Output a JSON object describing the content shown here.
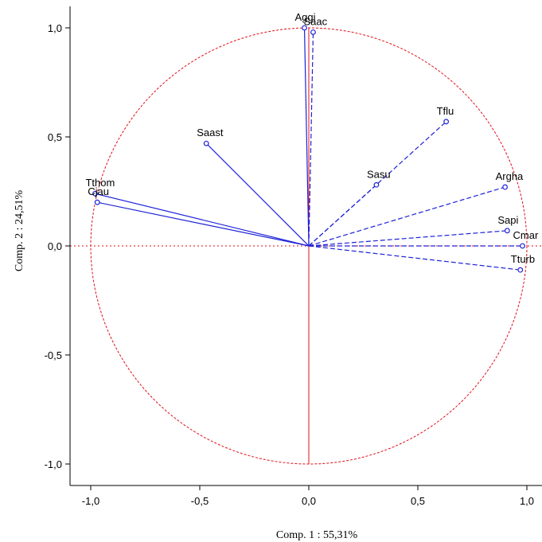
{
  "chart_data": {
    "type": "scatter",
    "subtype": "pca-correlation-circle",
    "title": "",
    "xlabel": "Comp. 1  : 55,31%",
    "ylabel": "Comp. 2  : 24,51%",
    "xlim": [
      -1.1,
      1.1
    ],
    "ylim": [
      -1.1,
      1.1
    ],
    "xticks": [
      "-1,0",
      "-0,5",
      "0,0",
      "0,5",
      "1,0"
    ],
    "yticks": [
      "1,0",
      "0,5",
      "0,0",
      "-0,5",
      "-1,0"
    ],
    "grid": false,
    "circle_color": "#e0101a",
    "vector_color": "#1e22d8",
    "points": [
      {
        "label": "Aggi",
        "x": -0.02,
        "y": 1.0,
        "style": "solid"
      },
      {
        "label": "Saac",
        "x": 0.02,
        "y": 0.98,
        "style": "dashed"
      },
      {
        "label": "Tflu",
        "x": 0.63,
        "y": 0.57,
        "style": "dashed"
      },
      {
        "label": "Saast",
        "x": -0.47,
        "y": 0.47,
        "style": "solid"
      },
      {
        "label": "Sasu",
        "x": 0.31,
        "y": 0.28,
        "style": "dashed"
      },
      {
        "label": "Argha",
        "x": 0.9,
        "y": 0.27,
        "style": "dashed"
      },
      {
        "label": "Tthom",
        "x": -0.98,
        "y": 0.24,
        "style": "solid"
      },
      {
        "label": "Cjau",
        "x": -0.97,
        "y": 0.2,
        "style": "solid"
      },
      {
        "label": "Sapi",
        "x": 0.91,
        "y": 0.07,
        "style": "dashed"
      },
      {
        "label": "Cmar",
        "x": 0.98,
        "y": 0.0,
        "style": "dashed"
      },
      {
        "label": "Tturb",
        "x": 0.97,
        "y": -0.11,
        "style": "dashed"
      }
    ]
  }
}
